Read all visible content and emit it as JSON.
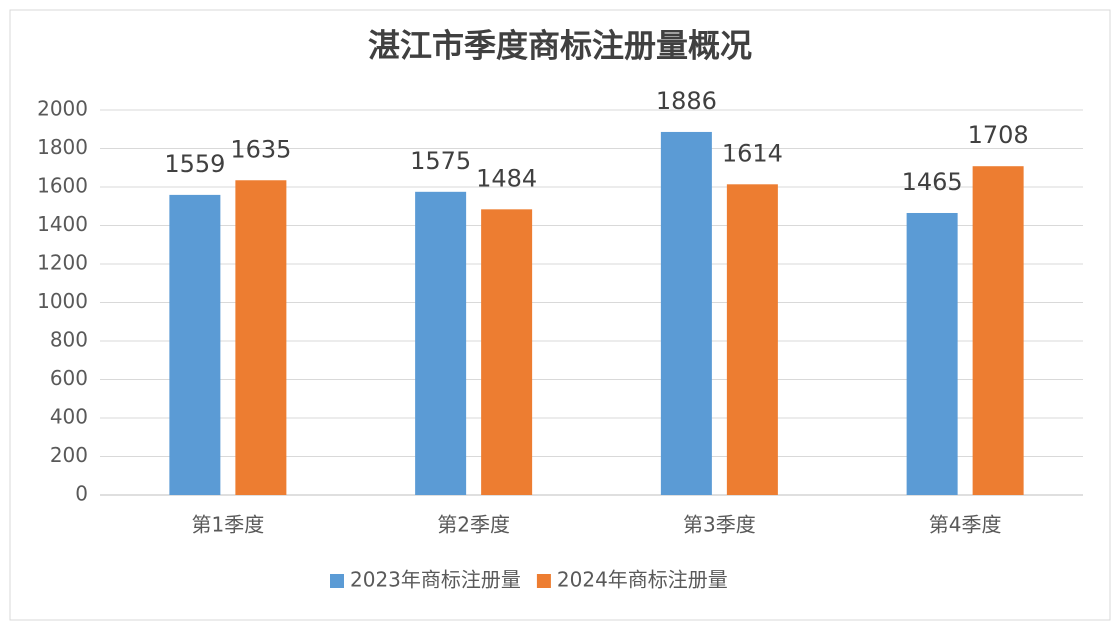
{
  "chart_data": {
    "type": "bar",
    "title": "湛江市季度商标注册量概况",
    "categories": [
      "第1季度",
      "第2季度",
      "第3季度",
      "第4季度"
    ],
    "series": [
      {
        "name": "2023年商标注册量",
        "color": "#5b9bd5",
        "values": [
          1559,
          1575,
          1886,
          1465
        ]
      },
      {
        "name": "2024年商标注册量",
        "color": "#ed7d31",
        "values": [
          1635,
          1484,
          1614,
          1708
        ]
      }
    ],
    "ylim": [
      0,
      2000
    ],
    "yticks": [
      0,
      200,
      400,
      600,
      800,
      1000,
      1200,
      1400,
      1600,
      1800,
      2000
    ],
    "grid": true,
    "legend": "bottom"
  }
}
